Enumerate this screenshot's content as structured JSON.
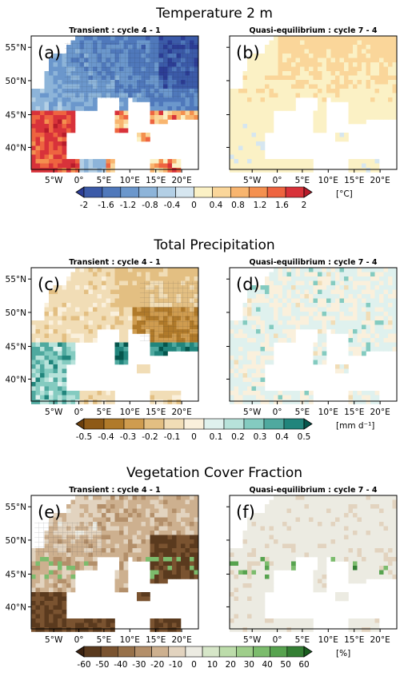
{
  "figure": {
    "panels": [
      {
        "title": "Temperature 2 m",
        "left_subtitle": "Transient : cycle 4 - 1",
        "right_subtitle": "Quasi-equilibrium : cycle 7 - 4",
        "left_label": "(a)",
        "right_label": "(b)",
        "units": "[°C]",
        "ticks": [
          "-2",
          "-1.6",
          "-1.2",
          "-0.8",
          "-0.4",
          "0",
          "0.4",
          "0.8",
          "1.2",
          "1.6",
          "2"
        ]
      },
      {
        "title": "Total Precipitation",
        "left_subtitle": "Transient : cycle 4 - 1",
        "right_subtitle": "Quasi-equilibrium : cycle 7 - 4",
        "left_label": "(c)",
        "right_label": "(d)",
        "units": "[mm d⁻¹]",
        "ticks": [
          "-0.5",
          "-0.4",
          "-0.3",
          "-0.2",
          "-0.1",
          "0",
          "0.1",
          "0.2",
          "0.3",
          "0.4",
          "0.5"
        ]
      },
      {
        "title": "Vegetation Cover Fraction",
        "left_subtitle": "Transient : cycle 4 - 1",
        "right_subtitle": "Quasi-equilibrium : cycle 7 - 4",
        "left_label": "(e)",
        "right_label": "(f)",
        "units": "[%]",
        "ticks": [
          "-60",
          "-50",
          "-40",
          "-30",
          "-20",
          "-10",
          "0",
          "10",
          "20",
          "30",
          "40",
          "50",
          "60"
        ]
      }
    ],
    "lat_ticks": [
      "55°N",
      "50°N",
      "45°N",
      "40°N"
    ],
    "lon_ticks": [
      "5°W",
      "0°",
      "5°E",
      "10°E",
      "15°E",
      "20°E"
    ]
  },
  "chart_data": [
    {
      "type": "heatmap",
      "title": "Temperature 2 m",
      "series": [
        {
          "name": "Transient : cycle 4 - 1"
        },
        {
          "name": "Quasi-equilibrium : cycle 7 - 4"
        }
      ],
      "colorbar": {
        "min": -2,
        "max": 2,
        "step": 0.4,
        "units": "°C",
        "colors": [
          "#2c3d95",
          "#3b5aa8",
          "#4f78bb",
          "#6b97cc",
          "#8db4d9",
          "#b3cfe5",
          "#d6e6f0",
          "#fbf1c5",
          "#fad69a",
          "#f8b56f",
          "#f4904f",
          "#ee6440",
          "#d8323a",
          "#b71c2b"
        ]
      }
    },
    {
      "type": "heatmap",
      "title": "Total Precipitation",
      "series": [
        {
          "name": "Transient : cycle 4 - 1"
        },
        {
          "name": "Quasi-equilibrium : cycle 7 - 4"
        }
      ],
      "colorbar": {
        "min": -0.5,
        "max": 0.5,
        "step": 0.1,
        "units": "mm d-1",
        "colors": [
          "#6b3f0c",
          "#8e5a17",
          "#b07a2a",
          "#cf9c4f",
          "#e3bf82",
          "#f1ddb6",
          "#faf0dc",
          "#dff1ee",
          "#b7e2da",
          "#84cbc0",
          "#4fa99f",
          "#21857c",
          "#06564d"
        ]
      }
    },
    {
      "type": "heatmap",
      "title": "Vegetation Cover Fraction",
      "series": [
        {
          "name": "Transient : cycle 4 - 1"
        },
        {
          "name": "Quasi-equilibrium : cycle 7 - 4"
        }
      ],
      "colorbar": {
        "min": -60,
        "max": 60,
        "step": 10,
        "units": "%",
        "colors": [
          "#3b2210",
          "#5a3a1e",
          "#7a5330",
          "#97714a",
          "#b38f6a",
          "#cdb08f",
          "#e2d3bf",
          "#ecebe2",
          "#d6e6c8",
          "#bcdcaa",
          "#9fce8b",
          "#7cbc6d",
          "#57a34f",
          "#347f34",
          "#1b5e20"
        ]
      }
    }
  ]
}
